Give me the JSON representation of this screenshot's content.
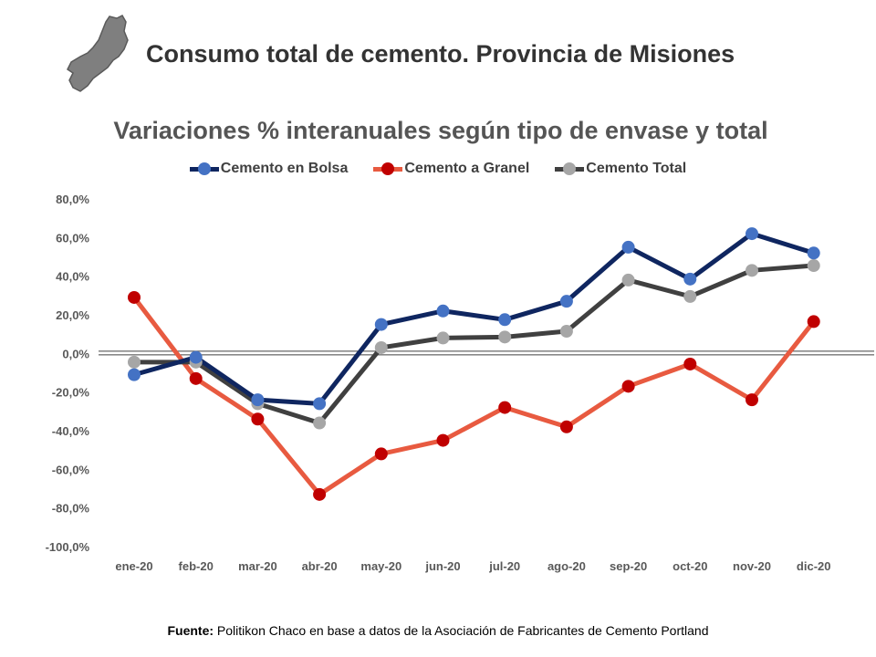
{
  "header": {
    "title": "Consumo total de cemento. Provincia de Misiones",
    "logo_icon": "misiones-province-map-icon"
  },
  "colors": {
    "bolsa_line": "#0f2660",
    "bolsa_marker": "#4472c4",
    "granel_line": "#e85a40",
    "granel_marker": "#c00000",
    "total_line": "#404040",
    "total_marker": "#a6a6a6",
    "axis_text": "#595959"
  },
  "chart_data": {
    "type": "line",
    "title": "Variaciones % interanuales según tipo de envase y total",
    "categories": [
      "ene-20",
      "feb-20",
      "mar-20",
      "abr-20",
      "may-20",
      "jun-20",
      "jul-20",
      "ago-20",
      "sep-20",
      "oct-20",
      "nov-20",
      "dic-20"
    ],
    "ylim": [
      -100,
      80
    ],
    "yticks": [
      80,
      60,
      40,
      20,
      0,
      -20,
      -40,
      -60,
      -80,
      -100
    ],
    "ytick_labels": [
      "80,0%",
      "60,0%",
      "40,0%",
      "20,0%",
      "0,0%",
      "-20,0%",
      "-40,0%",
      "-60,0%",
      "-80,0%",
      "-100,0%"
    ],
    "grid": false,
    "legend_position": "top",
    "series": [
      {
        "name": "Cemento en Bolsa",
        "values": [
          -11,
          -2,
          -24,
          -26,
          15,
          22,
          17.5,
          27,
          55,
          38.5,
          62,
          52
        ]
      },
      {
        "name": "Cemento a Granel",
        "values": [
          29,
          -13,
          -34,
          -73,
          -52,
          -45,
          -28,
          -38,
          -17,
          -5.5,
          -24,
          16.5
        ]
      },
      {
        "name": "Cemento Total",
        "values": [
          -4.5,
          -4.5,
          -26,
          -36,
          3,
          8,
          8.5,
          11.5,
          38,
          29.5,
          43,
          45.5
        ]
      }
    ]
  },
  "footer": {
    "source_label": "Fuente:",
    "source_text": " Politikon Chaco en base a datos de la Asociación de Fabricantes de Cemento Portland"
  }
}
